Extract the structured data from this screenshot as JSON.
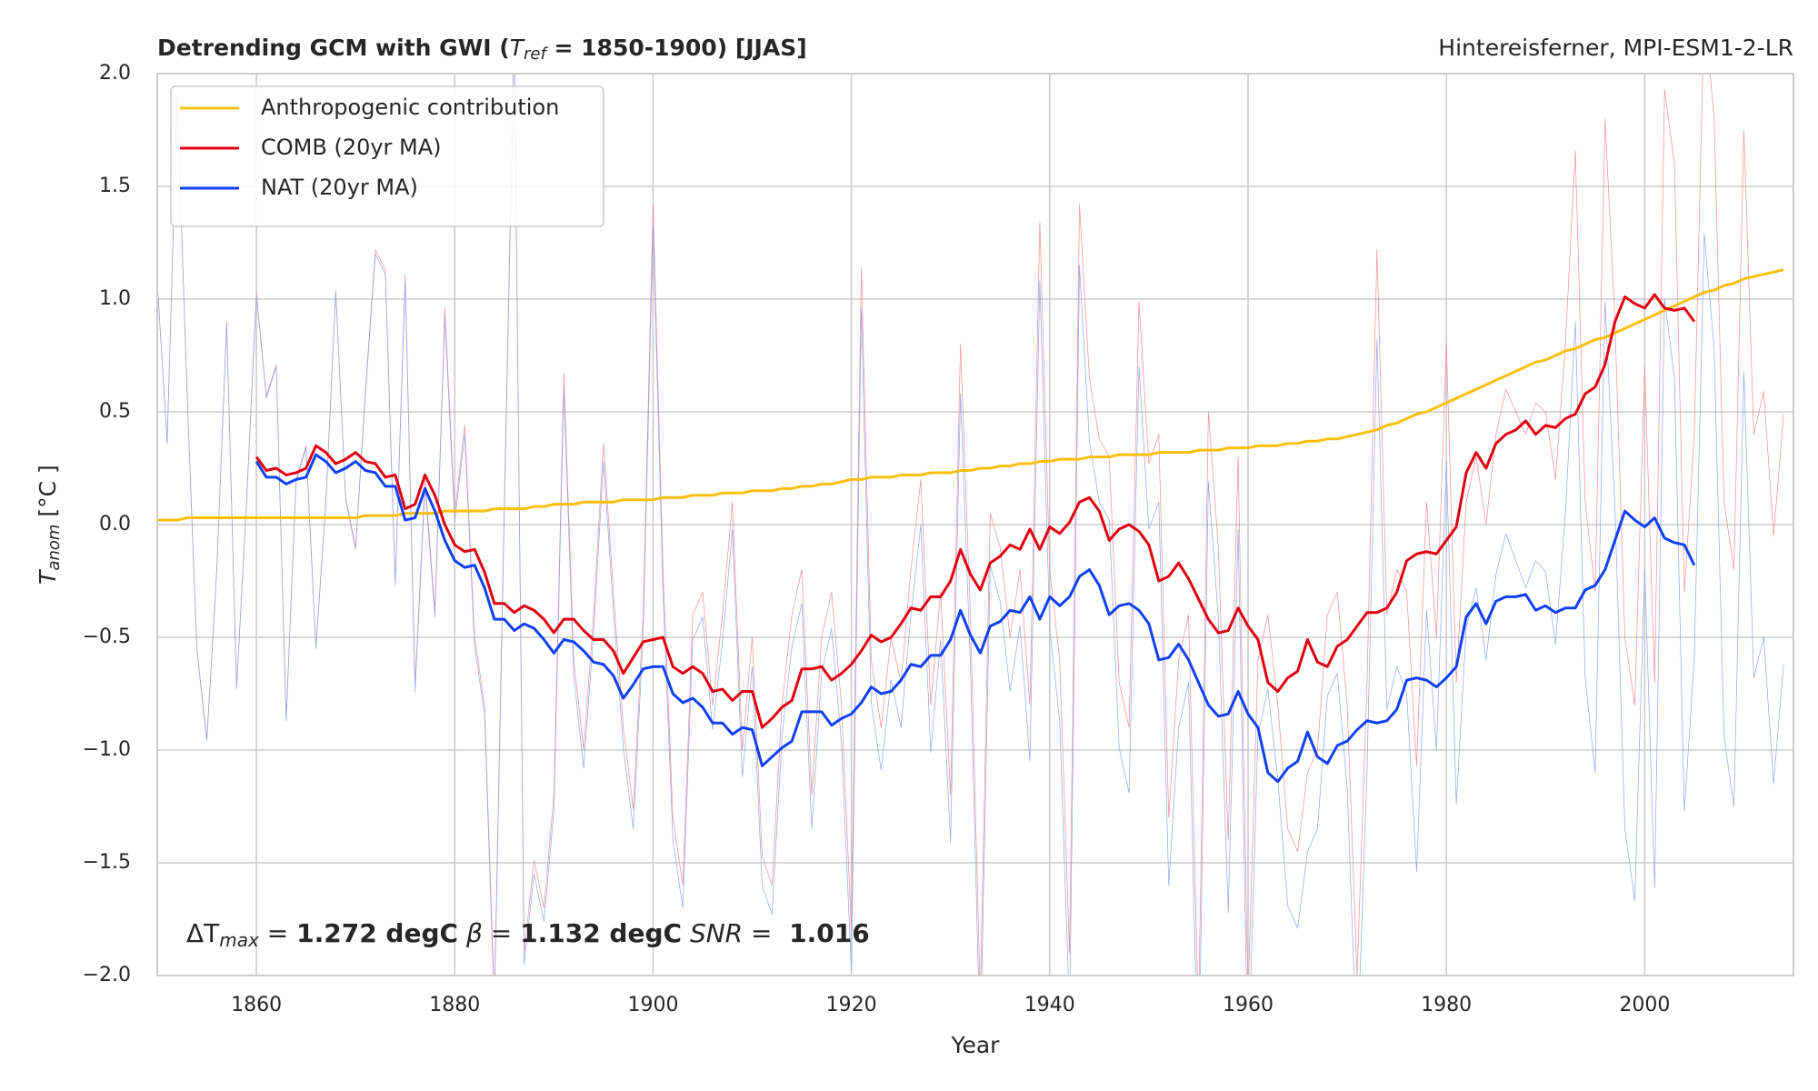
{
  "chart_data": {
    "type": "line",
    "title": [
      "Detrending GCM with GWI (",
      "T",
      "ref",
      " = 1850-1900) [JJAS]"
    ],
    "subtitle": "Hintereisferner, MPI-ESM1-2-LR",
    "x_label": "Year",
    "y_label": [
      "T",
      "anom",
      " [°C ]"
    ],
    "annotation": [
      "ΔT",
      "max",
      " = ",
      "1.272 degC",
      " β",
      " = ",
      "1.132 degC",
      " SNR",
      " = ",
      " 1.016"
    ],
    "xlim": [
      1850,
      2015
    ],
    "xticks": [
      1860,
      1880,
      1900,
      1920,
      1940,
      1960,
      1980,
      2000
    ],
    "ylim": [
      -2,
      2
    ],
    "yticks": [
      {
        "value": -2,
        "label": "−2.0"
      },
      {
        "value": -1.5,
        "label": "−1.5"
      },
      {
        "value": -1,
        "label": "−1.0"
      },
      {
        "value": -0.5,
        "label": "−0.5"
      },
      {
        "value": 0,
        "label": "0.0"
      },
      {
        "value": 0.5,
        "label": "0.5"
      },
      {
        "value": 1,
        "label": "1.0"
      },
      {
        "value": 1.5,
        "label": "1.5"
      },
      {
        "value": 2,
        "label": "2.0"
      }
    ],
    "grid": true,
    "legend": "upper left",
    "x": [
      1850,
      1851,
      1852,
      1853,
      1854,
      1855,
      1856,
      1857,
      1858,
      1859,
      1860,
      1861,
      1862,
      1863,
      1864,
      1865,
      1866,
      1867,
      1868,
      1869,
      1870,
      1871,
      1872,
      1873,
      1874,
      1875,
      1876,
      1877,
      1878,
      1879,
      1880,
      1881,
      1882,
      1883,
      1884,
      1885,
      1886,
      1887,
      1888,
      1889,
      1890,
      1891,
      1892,
      1893,
      1894,
      1895,
      1896,
      1897,
      1898,
      1899,
      1900,
      1901,
      1902,
      1903,
      1904,
      1905,
      1906,
      1907,
      1908,
      1909,
      1910,
      1911,
      1912,
      1913,
      1914,
      1915,
      1916,
      1917,
      1918,
      1919,
      1920,
      1921,
      1922,
      1923,
      1924,
      1925,
      1926,
      1927,
      1928,
      1929,
      1930,
      1931,
      1932,
      1933,
      1934,
      1935,
      1936,
      1937,
      1938,
      1939,
      1940,
      1941,
      1942,
      1943,
      1944,
      1945,
      1946,
      1947,
      1948,
      1949,
      1950,
      1951,
      1952,
      1953,
      1954,
      1955,
      1956,
      1957,
      1958,
      1959,
      1960,
      1961,
      1962,
      1963,
      1964,
      1965,
      1966,
      1967,
      1968,
      1969,
      1970,
      1971,
      1972,
      1973,
      1974,
      1975,
      1976,
      1977,
      1978,
      1979,
      1980,
      1981,
      1982,
      1983,
      1984,
      1985,
      1986,
      1987,
      1988,
      1989,
      1990,
      1991,
      1992,
      1993,
      1994,
      1995,
      1996,
      1997,
      1998,
      1999,
      2000,
      2001,
      2002,
      2003,
      2004,
      2005,
      2006,
      2007,
      2008,
      2009,
      2010,
      2011,
      2012,
      2013,
      2014
    ],
    "series": [
      {
        "color": "#f28b96",
        "width": 0.7,
        "values": [
          1.08,
          0.36,
          1.9,
          0.6,
          -0.55,
          -0.95,
          -0.2,
          0.9,
          -0.72,
          0.1,
          1.03,
          0.57,
          0.71,
          -0.86,
          0.2,
          0.35,
          -0.54,
          0.1,
          1.04,
          0.12,
          -0.1,
          0.6,
          1.22,
          1.13,
          -0.25,
          1.11,
          -0.71,
          0.2,
          -0.38,
          0.96,
          0.05,
          0.44,
          -0.5,
          -0.8,
          -2.1,
          0.1,
          2.2,
          -1.9,
          -1.49,
          -1.7,
          -1.2,
          0.67,
          -0.6,
          -1.0,
          -0.4,
          0.36,
          -0.3,
          -0.9,
          -1.26,
          -0.4,
          1.42,
          -0.2,
          -1.3,
          -1.6,
          -0.4,
          -0.3,
          -0.8,
          -0.4,
          0.1,
          -1.0,
          -0.5,
          -1.47,
          -1.6,
          -0.8,
          -0.4,
          -0.2,
          -1.2,
          -0.5,
          -0.3,
          -0.8,
          -1.8,
          1.14,
          -0.6,
          -0.9,
          -0.5,
          -0.7,
          -0.2,
          0.2,
          -0.8,
          -0.3,
          -1.2,
          0.8,
          -0.4,
          -2.1,
          0.05,
          -0.1,
          -0.5,
          -0.2,
          -0.8,
          1.34,
          -0.2,
          -0.6,
          -1.9,
          1.42,
          0.65,
          0.38,
          0.3,
          -0.7,
          -0.9,
          0.99,
          0.27,
          0.4,
          -1.3,
          -0.6,
          -0.4,
          -2.2,
          0.5,
          -0.1,
          -1.4,
          0.3,
          -2.1,
          -0.6,
          -0.4,
          -0.8,
          -1.35,
          -1.45,
          -1.1,
          -1.0,
          -0.4,
          -0.3,
          -0.8,
          -2.0,
          -0.7,
          1.22,
          -0.4,
          -0.2,
          -0.3,
          -1.07,
          0.1,
          -0.5,
          0.8,
          -0.7,
          0.1,
          0.3,
          0.0,
          0.4,
          0.6,
          0.5,
          0.4,
          0.54,
          0.5,
          0.2,
          0.8,
          1.66,
          0.1,
          -0.3,
          1.8,
          0.9,
          -0.5,
          -0.8,
          0.7,
          -0.7,
          1.93,
          1.6,
          -0.3,
          0.4,
          2.3,
          1.8,
          0.1,
          -0.2,
          1.75,
          0.4,
          0.59,
          -0.05,
          0.49
        ]
      },
      {
        "color": "#8ea6f0",
        "width": 0.7,
        "values": [
          1.08,
          0.36,
          1.9,
          0.59,
          -0.56,
          -0.96,
          -0.21,
          0.89,
          -0.73,
          0.09,
          1.02,
          0.56,
          0.7,
          -0.87,
          0.19,
          0.34,
          -0.55,
          0.09,
          1.03,
          0.11,
          -0.11,
          0.58,
          1.2,
          1.11,
          -0.27,
          1.08,
          -0.74,
          0.17,
          -0.41,
          0.92,
          0.01,
          0.4,
          -0.54,
          -0.84,
          -2.15,
          0.05,
          2.15,
          -1.95,
          -1.55,
          -1.76,
          -1.27,
          0.6,
          -0.67,
          -1.08,
          -0.48,
          0.28,
          -0.38,
          -0.99,
          -1.35,
          -0.49,
          1.33,
          -0.3,
          -1.4,
          -1.7,
          -0.51,
          -0.41,
          -0.91,
          -0.52,
          -0.02,
          -1.12,
          -0.63,
          -1.6,
          -1.73,
          -0.94,
          -0.54,
          -0.35,
          -1.35,
          -0.66,
          -0.46,
          -0.97,
          -1.98,
          0.96,
          -0.79,
          -1.09,
          -0.69,
          -0.9,
          -0.4,
          0.0,
          -1.01,
          -0.51,
          -1.41,
          0.58,
          -0.62,
          -2.33,
          -0.18,
          -0.34,
          -0.74,
          -0.45,
          -1.05,
          1.08,
          -0.46,
          -0.87,
          -2.17,
          1.15,
          0.37,
          0.1,
          0.02,
          -0.99,
          -1.19,
          0.7,
          -0.02,
          0.1,
          -1.6,
          -0.9,
          -0.7,
          -2.51,
          0.19,
          -0.41,
          -1.72,
          -0.02,
          -2.42,
          -0.93,
          -0.73,
          -1.13,
          -1.69,
          -1.79,
          -1.45,
          -1.35,
          -0.76,
          -0.66,
          -1.17,
          -2.38,
          -1.09,
          0.82,
          -0.82,
          -0.63,
          -0.75,
          -1.54,
          -0.38,
          -1.0,
          0.28,
          -1.24,
          -0.46,
          -0.28,
          -0.6,
          -0.22,
          -0.04,
          -0.16,
          -0.28,
          -0.16,
          -0.21,
          -0.53,
          0.05,
          0.9,
          -0.68,
          -1.1,
          0.99,
          0.07,
          -1.35,
          -1.67,
          -0.19,
          -1.61,
          1.0,
          0.65,
          -1.27,
          -0.59,
          1.29,
          0.78,
          -0.94,
          -1.25,
          0.68,
          -0.68,
          -0.5,
          -1.15,
          -0.62
        ]
      },
      {
        "name": "Anthropogenic contribution",
        "color": "#fbbf0e",
        "width": 3,
        "values": [
          0.02,
          0.02,
          0.02,
          0.03,
          0.03,
          0.03,
          0.03,
          0.03,
          0.03,
          0.03,
          0.03,
          0.03,
          0.03,
          0.03,
          0.03,
          0.03,
          0.03,
          0.03,
          0.03,
          0.03,
          0.03,
          0.04,
          0.04,
          0.04,
          0.04,
          0.05,
          0.05,
          0.05,
          0.05,
          0.06,
          0.06,
          0.06,
          0.06,
          0.06,
          0.07,
          0.07,
          0.07,
          0.07,
          0.08,
          0.08,
          0.09,
          0.09,
          0.09,
          0.1,
          0.1,
          0.1,
          0.1,
          0.11,
          0.11,
          0.11,
          0.11,
          0.12,
          0.12,
          0.12,
          0.13,
          0.13,
          0.13,
          0.14,
          0.14,
          0.14,
          0.15,
          0.15,
          0.15,
          0.16,
          0.16,
          0.17,
          0.17,
          0.18,
          0.18,
          0.19,
          0.2,
          0.2,
          0.21,
          0.21,
          0.21,
          0.22,
          0.22,
          0.22,
          0.23,
          0.23,
          0.23,
          0.24,
          0.24,
          0.25,
          0.25,
          0.26,
          0.26,
          0.27,
          0.27,
          0.28,
          0.28,
          0.29,
          0.29,
          0.29,
          0.3,
          0.3,
          0.3,
          0.31,
          0.31,
          0.31,
          0.31,
          0.32,
          0.32,
          0.32,
          0.32,
          0.33,
          0.33,
          0.33,
          0.34,
          0.34,
          0.34,
          0.35,
          0.35,
          0.35,
          0.36,
          0.36,
          0.37,
          0.37,
          0.38,
          0.38,
          0.39,
          0.4,
          0.41,
          0.42,
          0.44,
          0.45,
          0.47,
          0.49,
          0.5,
          0.52,
          0.54,
          0.56,
          0.58,
          0.6,
          0.62,
          0.64,
          0.66,
          0.68,
          0.7,
          0.72,
          0.73,
          0.75,
          0.77,
          0.78,
          0.8,
          0.82,
          0.83,
          0.85,
          0.87,
          0.89,
          0.91,
          0.93,
          0.95,
          0.97,
          0.99,
          1.01,
          1.03,
          1.04,
          1.06,
          1.07,
          1.09,
          1.1,
          1.11,
          1.12,
          1.13
        ]
      },
      {
        "name": "COMB (20yr MA)",
        "color": "#e0000f",
        "width": 3,
        "values": [
          null,
          null,
          null,
          null,
          null,
          null,
          null,
          null,
          null,
          null,
          0.3,
          0.24,
          0.25,
          0.22,
          0.23,
          0.25,
          0.35,
          0.32,
          0.27,
          0.29,
          0.32,
          0.28,
          0.27,
          0.21,
          0.22,
          0.07,
          0.09,
          0.22,
          0.13,
          0.0,
          -0.09,
          -0.12,
          -0.11,
          -0.21,
          -0.35,
          -0.35,
          -0.39,
          -0.36,
          -0.38,
          -0.42,
          -0.48,
          -0.42,
          -0.42,
          -0.47,
          -0.51,
          -0.51,
          -0.56,
          -0.66,
          -0.59,
          -0.52,
          -0.51,
          -0.5,
          -0.63,
          -0.66,
          -0.63,
          -0.66,
          -0.74,
          -0.73,
          -0.78,
          -0.74,
          -0.74,
          -0.9,
          -0.86,
          -0.81,
          -0.78,
          -0.64,
          -0.64,
          -0.63,
          -0.69,
          -0.66,
          -0.62,
          -0.56,
          -0.49,
          -0.52,
          -0.5,
          -0.44,
          -0.37,
          -0.38,
          -0.32,
          -0.32,
          -0.25,
          -0.11,
          -0.22,
          -0.29,
          -0.17,
          -0.14,
          -0.09,
          -0.11,
          -0.02,
          -0.11,
          -0.01,
          -0.04,
          0.01,
          0.1,
          0.12,
          0.06,
          -0.07,
          -0.02,
          0.0,
          -0.03,
          -0.09,
          -0.25,
          -0.23,
          -0.17,
          -0.24,
          -0.33,
          -0.42,
          -0.48,
          -0.47,
          -0.37,
          -0.45,
          -0.51,
          -0.7,
          -0.74,
          -0.68,
          -0.65,
          -0.51,
          -0.61,
          -0.63,
          -0.54,
          -0.51,
          -0.45,
          -0.39,
          -0.39,
          -0.37,
          -0.3,
          -0.16,
          -0.13,
          -0.12,
          -0.13,
          -0.07,
          -0.01,
          0.23,
          0.32,
          0.25,
          0.36,
          0.4,
          0.42,
          0.46,
          0.4,
          0.44,
          0.43,
          0.47,
          0.49,
          0.58,
          0.61,
          0.71,
          0.9,
          1.01,
          0.98,
          0.96,
          1.02,
          0.96,
          0.95,
          0.96,
          0.9,
          null,
          null,
          null,
          null,
          null,
          null,
          null,
          null,
          null
        ]
      },
      {
        "name": "NAT (20yr MA)",
        "color": "#1040f0",
        "width": 3,
        "values": [
          null,
          null,
          null,
          null,
          null,
          null,
          null,
          null,
          null,
          null,
          0.28,
          0.21,
          0.21,
          0.18,
          0.2,
          0.21,
          0.31,
          0.28,
          0.23,
          0.25,
          0.28,
          0.24,
          0.23,
          0.17,
          0.17,
          0.02,
          0.03,
          0.16,
          0.06,
          -0.07,
          -0.16,
          -0.19,
          -0.18,
          -0.28,
          -0.42,
          -0.42,
          -0.47,
          -0.44,
          -0.46,
          -0.51,
          -0.57,
          -0.51,
          -0.52,
          -0.56,
          -0.61,
          -0.62,
          -0.67,
          -0.77,
          -0.71,
          -0.64,
          -0.63,
          -0.63,
          -0.75,
          -0.79,
          -0.77,
          -0.81,
          -0.88,
          -0.88,
          -0.93,
          -0.9,
          -0.91,
          -1.07,
          -1.03,
          -0.99,
          -0.96,
          -0.83,
          -0.83,
          -0.83,
          -0.89,
          -0.86,
          -0.84,
          -0.79,
          -0.72,
          -0.75,
          -0.74,
          -0.69,
          -0.62,
          -0.63,
          -0.58,
          -0.58,
          -0.51,
          -0.38,
          -0.49,
          -0.57,
          -0.45,
          -0.43,
          -0.38,
          -0.39,
          -0.32,
          -0.42,
          -0.32,
          -0.36,
          -0.32,
          -0.23,
          -0.2,
          -0.27,
          -0.4,
          -0.36,
          -0.35,
          -0.38,
          -0.44,
          -0.6,
          -0.59,
          -0.53,
          -0.6,
          -0.7,
          -0.8,
          -0.85,
          -0.84,
          -0.74,
          -0.84,
          -0.9,
          -1.1,
          -1.14,
          -1.08,
          -1.05,
          -0.92,
          -1.03,
          -1.06,
          -0.98,
          -0.96,
          -0.91,
          -0.87,
          -0.88,
          -0.87,
          -0.82,
          -0.69,
          -0.68,
          -0.69,
          -0.72,
          -0.68,
          -0.63,
          -0.41,
          -0.35,
          -0.44,
          -0.34,
          -0.32,
          -0.32,
          -0.31,
          -0.38,
          -0.36,
          -0.39,
          -0.37,
          -0.37,
          -0.29,
          -0.27,
          -0.2,
          -0.07,
          0.06,
          0.02,
          -0.01,
          0.03,
          -0.06,
          -0.08,
          -0.09,
          -0.18,
          null,
          null,
          null,
          null,
          null,
          null,
          null,
          null,
          null
        ]
      }
    ]
  }
}
